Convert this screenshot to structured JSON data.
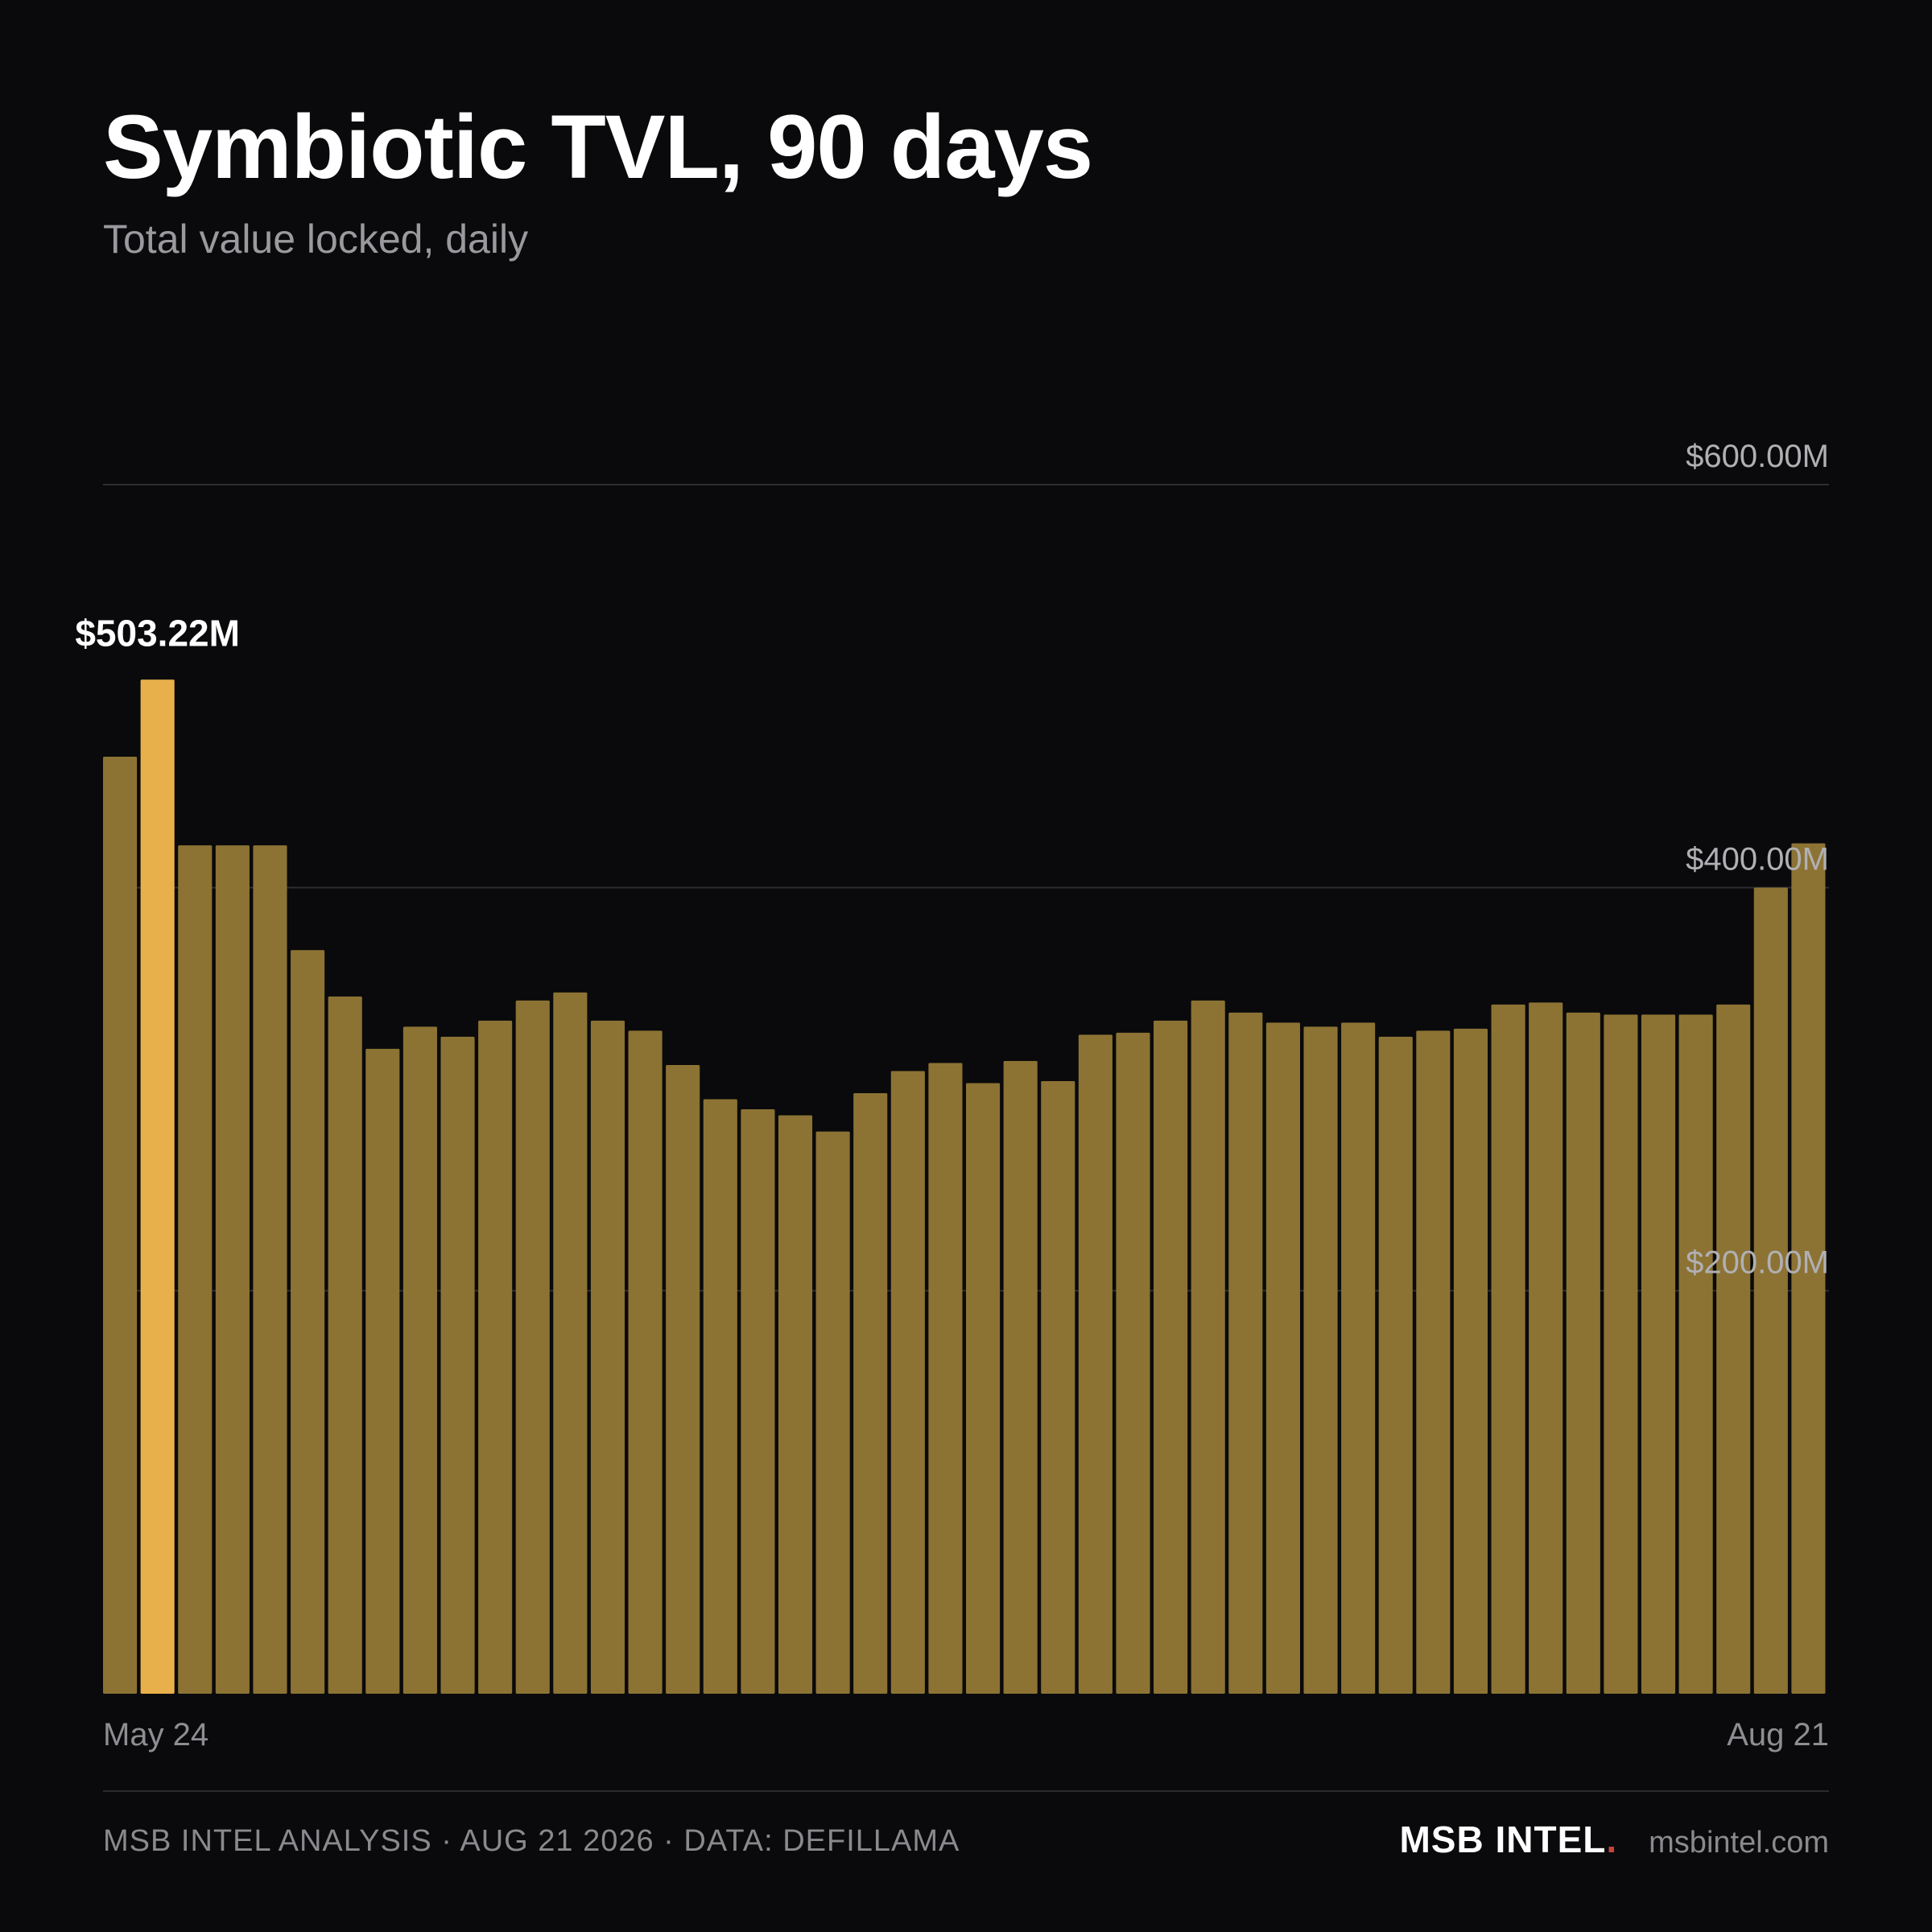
{
  "header": {
    "title": "Symbiotic TVL, 90 days",
    "subtitle": "Total value locked, daily"
  },
  "chart_data": {
    "type": "bar",
    "title": "Symbiotic TVL, 90 days",
    "subtitle": "Total value locked, daily",
    "xlabel": "",
    "ylabel": "",
    "x_tick_labels": [
      "May 24",
      "Aug 21"
    ],
    "y_tick_labels": [
      "$200.00M",
      "$400.00M",
      "$600.00M"
    ],
    "y_ticks": [
      200,
      400,
      600
    ],
    "ylim": [
      0,
      600
    ],
    "units": "USD millions",
    "grid": true,
    "highlight_index": 1,
    "highlight_label": "$503.22M",
    "values": [
      465,
      503.22,
      421,
      421,
      421,
      369,
      346,
      320,
      331,
      326,
      334,
      344,
      348,
      334,
      329,
      312,
      295,
      290,
      287,
      279,
      298,
      309,
      313,
      303,
      314,
      304,
      327,
      328,
      334,
      344,
      338,
      333,
      331,
      333,
      326,
      329,
      330,
      342,
      343,
      338,
      337,
      337,
      337,
      342,
      400,
      422
    ]
  },
  "footer": {
    "credit": "MSB INTEL ANALYSIS · AUG 21 2026 · DATA: DEFILLAMA",
    "brand": "MSB INTEL",
    "brand_dot": ".",
    "url": "msbintel.com"
  },
  "colors": {
    "background": "#0a0a0c",
    "bar": "#8c7334",
    "bar_highlight": "#e8b04b",
    "grid": "#2e2e32",
    "tick_text": "#b0b0b4",
    "brand_dot": "#c9423a"
  }
}
